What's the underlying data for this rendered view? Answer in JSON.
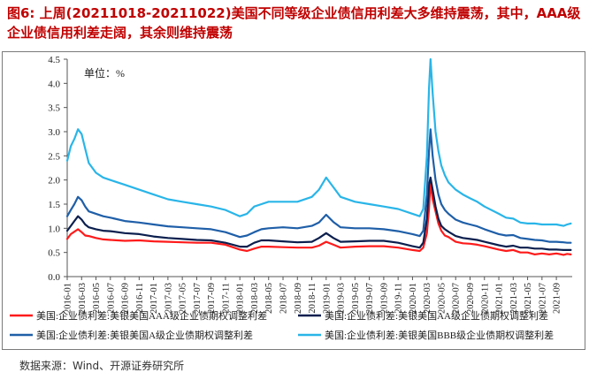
{
  "figure": {
    "title": "图6: 上周(20211018-20211022)美国不同等级企业债信用利差大多维持震荡，其中，AAA级企业债信用利差走阔，其余则维持震荡",
    "source": "数据来源：Wind、开源证券研究所"
  },
  "chart_data": {
    "type": "line",
    "unit_label": "单位：%",
    "ylim": [
      0,
      4.5
    ],
    "yticks": [
      0.0,
      0.5,
      1.0,
      1.5,
      2.0,
      2.5,
      3.0,
      3.5,
      4.0,
      4.5
    ],
    "x_tick_labels": [
      "2016-01",
      "2016-03",
      "2016-05",
      "2016-07",
      "2016-09",
      "2016-11",
      "2017-01",
      "2017-03",
      "2017-05",
      "2017-07",
      "2017-09",
      "2017-11",
      "2018-01",
      "2018-03",
      "2018-05",
      "2018-07",
      "2018-09",
      "2018-11",
      "2019-01",
      "2019-03",
      "2019-05",
      "2019-07",
      "2019-09",
      "2019-11",
      "2020-01",
      "2020-03",
      "2020-05",
      "2020-07",
      "2020-09",
      "2020-11",
      "2021-01",
      "2021-03",
      "2021-05",
      "2021-07",
      "2021-09"
    ],
    "x_months": [
      0,
      2,
      4,
      6,
      8,
      10,
      12,
      14,
      16,
      18,
      20,
      22,
      24,
      26,
      28,
      30,
      32,
      34,
      36,
      38,
      40,
      42,
      44,
      46,
      48,
      50,
      52,
      54,
      56,
      58,
      60,
      62,
      64,
      66,
      68
    ],
    "x_range_months": [
      0,
      70.2
    ],
    "series": [
      {
        "name": "美国:企业债利差:美银美国AAA级企业债期权调整利差",
        "color": "#ff1a1a",
        "points": [
          [
            0,
            0.78
          ],
          [
            0.5,
            0.88
          ],
          [
            1,
            0.93
          ],
          [
            1.5,
            0.98
          ],
          [
            2,
            0.92
          ],
          [
            2.5,
            0.85
          ],
          [
            3,
            0.84
          ],
          [
            4,
            0.8
          ],
          [
            5,
            0.77
          ],
          [
            6,
            0.76
          ],
          [
            8,
            0.74
          ],
          [
            10,
            0.75
          ],
          [
            12,
            0.73
          ],
          [
            14,
            0.72
          ],
          [
            16,
            0.71
          ],
          [
            18,
            0.7
          ],
          [
            20,
            0.7
          ],
          [
            22,
            0.66
          ],
          [
            24,
            0.56
          ],
          [
            25,
            0.53
          ],
          [
            26,
            0.58
          ],
          [
            27,
            0.62
          ],
          [
            28,
            0.62
          ],
          [
            30,
            0.61
          ],
          [
            32,
            0.6
          ],
          [
            34,
            0.6
          ],
          [
            35,
            0.64
          ],
          [
            36,
            0.72
          ],
          [
            37,
            0.66
          ],
          [
            38,
            0.6
          ],
          [
            40,
            0.62
          ],
          [
            42,
            0.63
          ],
          [
            44,
            0.63
          ],
          [
            46,
            0.6
          ],
          [
            48,
            0.55
          ],
          [
            49,
            0.53
          ],
          [
            49.5,
            0.6
          ],
          [
            50,
            0.9
          ],
          [
            50.3,
            1.4
          ],
          [
            50.5,
            1.95
          ],
          [
            50.8,
            1.6
          ],
          [
            51.2,
            1.35
          ],
          [
            51.6,
            1.1
          ],
          [
            52,
            0.95
          ],
          [
            52.5,
            0.85
          ],
          [
            53,
            0.82
          ],
          [
            54,
            0.72
          ],
          [
            55,
            0.69
          ],
          [
            56,
            0.68
          ],
          [
            57,
            0.66
          ],
          [
            58,
            0.63
          ],
          [
            60,
            0.56
          ],
          [
            61,
            0.53
          ],
          [
            62,
            0.55
          ],
          [
            63,
            0.5
          ],
          [
            64,
            0.5
          ],
          [
            65,
            0.46
          ],
          [
            66,
            0.48
          ],
          [
            67,
            0.46
          ],
          [
            68,
            0.48
          ],
          [
            69,
            0.45
          ],
          [
            69.5,
            0.47
          ],
          [
            70,
            0.46
          ]
        ]
      },
      {
        "name": "美国:企业债利差:美银美国AA级企业债期权调整利差",
        "color": "#0b1f4e",
        "points": [
          [
            0,
            0.95
          ],
          [
            0.5,
            1.05
          ],
          [
            1,
            1.15
          ],
          [
            1.5,
            1.25
          ],
          [
            2,
            1.18
          ],
          [
            2.5,
            1.08
          ],
          [
            3,
            1.02
          ],
          [
            4,
            0.98
          ],
          [
            5,
            0.95
          ],
          [
            6,
            0.94
          ],
          [
            8,
            0.9
          ],
          [
            10,
            0.88
          ],
          [
            12,
            0.83
          ],
          [
            14,
            0.8
          ],
          [
            16,
            0.78
          ],
          [
            18,
            0.76
          ],
          [
            20,
            0.75
          ],
          [
            22,
            0.7
          ],
          [
            24,
            0.62
          ],
          [
            25,
            0.62
          ],
          [
            26,
            0.7
          ],
          [
            27,
            0.75
          ],
          [
            28,
            0.75
          ],
          [
            30,
            0.73
          ],
          [
            32,
            0.71
          ],
          [
            34,
            0.72
          ],
          [
            35,
            0.8
          ],
          [
            36,
            0.9
          ],
          [
            37,
            0.8
          ],
          [
            38,
            0.72
          ],
          [
            40,
            0.73
          ],
          [
            42,
            0.74
          ],
          [
            44,
            0.74
          ],
          [
            46,
            0.7
          ],
          [
            48,
            0.63
          ],
          [
            49,
            0.6
          ],
          [
            49.5,
            0.7
          ],
          [
            50,
            1.2
          ],
          [
            50.3,
            1.9
          ],
          [
            50.5,
            2.05
          ],
          [
            50.8,
            1.8
          ],
          [
            51.2,
            1.45
          ],
          [
            51.6,
            1.2
          ],
          [
            52,
            1.05
          ],
          [
            52.5,
            0.98
          ],
          [
            53,
            0.93
          ],
          [
            54,
            0.84
          ],
          [
            55,
            0.8
          ],
          [
            56,
            0.78
          ],
          [
            57,
            0.76
          ],
          [
            58,
            0.72
          ],
          [
            60,
            0.65
          ],
          [
            61,
            0.62
          ],
          [
            62,
            0.64
          ],
          [
            63,
            0.6
          ],
          [
            64,
            0.6
          ],
          [
            65,
            0.58
          ],
          [
            66,
            0.58
          ],
          [
            67,
            0.56
          ],
          [
            68,
            0.56
          ],
          [
            69,
            0.55
          ],
          [
            69.5,
            0.55
          ],
          [
            70,
            0.55
          ]
        ]
      },
      {
        "name": "美国:企业债利差:美银美国A级企业债期权调整利差",
        "color": "#1f5fa8",
        "points": [
          [
            0,
            1.25
          ],
          [
            0.5,
            1.38
          ],
          [
            1,
            1.5
          ],
          [
            1.5,
            1.65
          ],
          [
            2,
            1.58
          ],
          [
            2.5,
            1.45
          ],
          [
            3,
            1.35
          ],
          [
            4,
            1.3
          ],
          [
            5,
            1.25
          ],
          [
            6,
            1.22
          ],
          [
            8,
            1.15
          ],
          [
            10,
            1.12
          ],
          [
            12,
            1.08
          ],
          [
            14,
            1.04
          ],
          [
            16,
            1.02
          ],
          [
            18,
            1.0
          ],
          [
            20,
            0.98
          ],
          [
            22,
            0.92
          ],
          [
            24,
            0.82
          ],
          [
            25,
            0.85
          ],
          [
            26,
            0.92
          ],
          [
            27,
            0.98
          ],
          [
            28,
            1.0
          ],
          [
            30,
            1.02
          ],
          [
            32,
            1.0
          ],
          [
            34,
            1.05
          ],
          [
            35,
            1.12
          ],
          [
            36,
            1.28
          ],
          [
            37,
            1.13
          ],
          [
            38,
            1.02
          ],
          [
            40,
            1.0
          ],
          [
            42,
            1.0
          ],
          [
            44,
            0.98
          ],
          [
            46,
            0.94
          ],
          [
            48,
            0.88
          ],
          [
            49,
            0.84
          ],
          [
            49.5,
            0.95
          ],
          [
            50,
            1.7
          ],
          [
            50.3,
            2.6
          ],
          [
            50.5,
            3.05
          ],
          [
            50.8,
            2.5
          ],
          [
            51.2,
            2.0
          ],
          [
            51.6,
            1.7
          ],
          [
            52,
            1.5
          ],
          [
            52.5,
            1.38
          ],
          [
            53,
            1.3
          ],
          [
            54,
            1.18
          ],
          [
            55,
            1.12
          ],
          [
            56,
            1.08
          ],
          [
            57,
            1.04
          ],
          [
            58,
            0.98
          ],
          [
            60,
            0.88
          ],
          [
            61,
            0.85
          ],
          [
            62,
            0.86
          ],
          [
            63,
            0.8
          ],
          [
            64,
            0.78
          ],
          [
            65,
            0.76
          ],
          [
            66,
            0.75
          ],
          [
            67,
            0.72
          ],
          [
            68,
            0.72
          ],
          [
            69,
            0.71
          ],
          [
            69.5,
            0.7
          ],
          [
            70,
            0.7
          ]
        ]
      },
      {
        "name": "美国:企业债利差:美银美国BBB级企业债期权调整利差",
        "color": "#29b5e8",
        "points": [
          [
            0,
            2.4
          ],
          [
            0.5,
            2.7
          ],
          [
            1,
            2.85
          ],
          [
            1.5,
            3.05
          ],
          [
            2,
            2.95
          ],
          [
            2.5,
            2.65
          ],
          [
            3,
            2.35
          ],
          [
            4,
            2.15
          ],
          [
            5,
            2.05
          ],
          [
            6,
            2.0
          ],
          [
            8,
            1.9
          ],
          [
            10,
            1.8
          ],
          [
            12,
            1.7
          ],
          [
            14,
            1.6
          ],
          [
            16,
            1.55
          ],
          [
            18,
            1.5
          ],
          [
            20,
            1.45
          ],
          [
            22,
            1.38
          ],
          [
            24,
            1.25
          ],
          [
            25,
            1.3
          ],
          [
            26,
            1.45
          ],
          [
            27,
            1.5
          ],
          [
            28,
            1.55
          ],
          [
            30,
            1.55
          ],
          [
            32,
            1.55
          ],
          [
            34,
            1.65
          ],
          [
            35,
            1.8
          ],
          [
            36,
            2.05
          ],
          [
            37,
            1.85
          ],
          [
            38,
            1.65
          ],
          [
            40,
            1.55
          ],
          [
            42,
            1.5
          ],
          [
            44,
            1.45
          ],
          [
            46,
            1.4
          ],
          [
            48,
            1.3
          ],
          [
            49,
            1.25
          ],
          [
            49.5,
            1.4
          ],
          [
            50,
            2.5
          ],
          [
            50.3,
            3.9
          ],
          [
            50.5,
            4.5
          ],
          [
            50.8,
            3.8
          ],
          [
            51.2,
            3.0
          ],
          [
            51.6,
            2.6
          ],
          [
            52,
            2.3
          ],
          [
            52.5,
            2.1
          ],
          [
            53,
            1.95
          ],
          [
            54,
            1.8
          ],
          [
            55,
            1.7
          ],
          [
            56,
            1.62
          ],
          [
            57,
            1.55
          ],
          [
            58,
            1.45
          ],
          [
            60,
            1.3
          ],
          [
            61,
            1.22
          ],
          [
            62,
            1.2
          ],
          [
            63,
            1.12
          ],
          [
            64,
            1.1
          ],
          [
            65,
            1.1
          ],
          [
            66,
            1.08
          ],
          [
            67,
            1.08
          ],
          [
            68,
            1.08
          ],
          [
            69,
            1.05
          ],
          [
            69.5,
            1.08
          ],
          [
            70,
            1.1
          ]
        ]
      }
    ]
  }
}
